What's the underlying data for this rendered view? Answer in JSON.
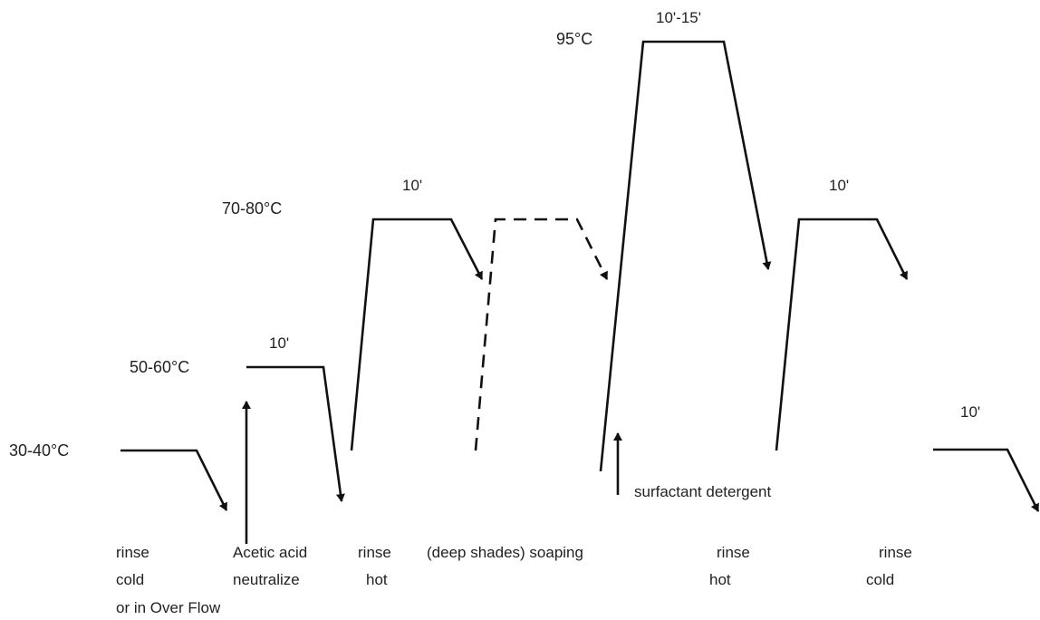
{
  "temperatures": {
    "t1": "30-40°C",
    "t2": "50-60°C",
    "t3": "70-80°C",
    "t4": "95°C"
  },
  "durations": {
    "d1": "10'",
    "d2": "10'",
    "d3": "10'-15'",
    "d4": "10'",
    "d5": "10'"
  },
  "annotations": {
    "surfactant": "surfactant detergent"
  },
  "steps": {
    "s1_line1": "rinse",
    "s1_line2": "cold",
    "s1_line3": "or in Over Flow",
    "s2_line1": "Acetic acid",
    "s2_line2": "neutralize",
    "s3_line1": "rinse",
    "s3_line2": "hot",
    "s4_line1": "(deep shades) soaping",
    "s5_line1": "rinse",
    "s5_line2": "hot",
    "s6_line1": "rinse",
    "s6_line2": "cold"
  }
}
